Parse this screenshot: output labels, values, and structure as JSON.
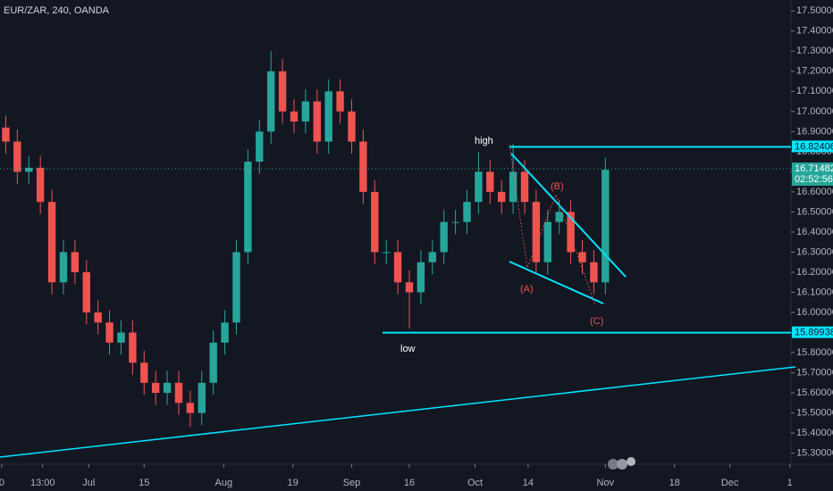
{
  "chart_data": {
    "type": "candlestick",
    "title": "EUR/ZAR, 240, OANDA",
    "up_color": "#26a69a",
    "down_color": "#ef5350",
    "grid": false,
    "xlim": [
      0,
      68.6
    ],
    "xticks": [
      {
        "value": 0.15,
        "label": "0"
      },
      {
        "value": 3.7,
        "label": "13:00"
      },
      {
        "value": 7.7,
        "label": "Jul"
      },
      {
        "value": 12.5,
        "label": "15"
      },
      {
        "value": 19.4,
        "label": "Aug"
      },
      {
        "value": 25.4,
        "label": "19"
      },
      {
        "value": 30.5,
        "label": "Sep"
      },
      {
        "value": 35.5,
        "label": "16"
      },
      {
        "value": 41.2,
        "label": "Oct"
      },
      {
        "value": 45.8,
        "label": "14"
      },
      {
        "value": 52.5,
        "label": "Nov"
      },
      {
        "value": 58.5,
        "label": "18"
      },
      {
        "value": 63.3,
        "label": "Dec"
      },
      {
        "value": 68.5,
        "label": "1"
      }
    ],
    "ylim": [
      15.245,
      17.5545
    ],
    "yticks": [
      {
        "value": 15.3,
        "label": "15.30000"
      },
      {
        "value": 15.4,
        "label": "15.40000"
      },
      {
        "value": 15.5,
        "label": "15.50000"
      },
      {
        "value": 15.6,
        "label": "15.60000"
      },
      {
        "value": 15.7,
        "label": "15.70000"
      },
      {
        "value": 15.8,
        "label": "15.80000"
      },
      {
        "value": 15.9,
        "label": "15.90000"
      },
      {
        "value": 16.0,
        "label": "16.00000"
      },
      {
        "value": 16.1,
        "label": "16.10000"
      },
      {
        "value": 16.2,
        "label": "16.20000"
      },
      {
        "value": 16.3,
        "label": "16.30000"
      },
      {
        "value": 16.4,
        "label": "16.40000"
      },
      {
        "value": 16.5,
        "label": "16.50000"
      },
      {
        "value": 16.6,
        "label": "16.60000"
      },
      {
        "value": 16.7,
        "label": "16.70000"
      },
      {
        "value": 16.8,
        "label": "16.80000"
      },
      {
        "value": 16.9,
        "label": "16.90000"
      },
      {
        "value": 17.0,
        "label": "17.00000"
      },
      {
        "value": 17.1,
        "label": "17.10000"
      },
      {
        "value": 17.2,
        "label": "17.20000"
      },
      {
        "value": 17.3,
        "label": "17.30000"
      },
      {
        "value": 17.4,
        "label": "17.40000"
      },
      {
        "value": 17.5,
        "label": "17.50000"
      }
    ],
    "open": [
      16.92,
      16.85,
      16.7,
      16.72,
      16.55,
      16.15,
      16.3,
      16.2,
      16.0,
      15.95,
      15.85,
      15.9,
      15.75,
      15.65,
      15.6,
      15.65,
      15.55,
      15.5,
      15.65,
      15.85,
      15.95,
      16.3,
      16.75,
      16.9,
      17.2,
      17.0,
      16.95,
      17.05,
      16.85,
      17.1,
      17.0,
      16.85,
      16.6,
      16.3,
      16.3,
      16.15,
      16.1,
      16.25,
      16.3,
      16.45,
      16.45,
      16.55,
      16.7,
      16.6,
      16.55,
      16.7,
      16.55,
      16.25,
      16.45,
      16.5,
      16.3,
      16.25,
      16.15
    ],
    "high": [
      16.98,
      16.91,
      16.78,
      16.78,
      16.61,
      16.36,
      16.36,
      16.26,
      16.06,
      16.01,
      15.96,
      15.96,
      15.81,
      15.71,
      15.71,
      15.71,
      15.61,
      15.71,
      15.91,
      16.01,
      16.36,
      16.81,
      16.96,
      17.3,
      17.26,
      17.06,
      17.11,
      17.11,
      17.16,
      17.16,
      17.06,
      16.91,
      16.66,
      16.36,
      16.36,
      16.21,
      16.31,
      16.36,
      16.51,
      16.51,
      16.61,
      16.8,
      16.76,
      16.66,
      16.84,
      16.76,
      16.61,
      16.51,
      16.56,
      16.56,
      16.36,
      16.31,
      16.77
    ],
    "low": [
      16.79,
      16.64,
      16.64,
      16.49,
      16.09,
      16.09,
      16.14,
      15.94,
      15.89,
      15.79,
      15.79,
      15.69,
      15.59,
      15.54,
      15.54,
      15.49,
      15.43,
      15.44,
      15.59,
      15.79,
      15.89,
      16.24,
      16.69,
      16.84,
      16.94,
      16.89,
      16.89,
      16.79,
      16.79,
      16.94,
      16.79,
      16.54,
      16.24,
      16.24,
      16.09,
      15.92,
      16.04,
      16.19,
      16.24,
      16.39,
      16.39,
      16.49,
      16.54,
      16.49,
      16.49,
      16.49,
      16.19,
      16.19,
      16.39,
      16.24,
      16.19,
      16.09,
      16.09
    ],
    "close": [
      16.85,
      16.7,
      16.72,
      16.55,
      16.15,
      16.3,
      16.2,
      16.0,
      15.95,
      15.85,
      15.9,
      15.75,
      15.65,
      15.6,
      15.65,
      15.55,
      15.5,
      15.65,
      15.85,
      15.95,
      16.3,
      16.75,
      16.9,
      17.2,
      17.0,
      16.95,
      17.05,
      16.85,
      17.1,
      17.0,
      16.85,
      16.6,
      16.3,
      16.3,
      16.15,
      16.1,
      16.25,
      16.3,
      16.45,
      16.45,
      16.55,
      16.7,
      16.6,
      16.55,
      16.7,
      16.55,
      16.25,
      16.45,
      16.5,
      16.3,
      16.25,
      16.15,
      16.71
    ],
    "price_lines": [
      {
        "value": 16.82406,
        "color": "#00e5ff"
      },
      {
        "value": 16.71482,
        "color": "#26a69a",
        "dotted": true
      },
      {
        "value": 15.89938,
        "color": "#00e5ff"
      }
    ],
    "countdown": "02:52:56",
    "annotations": [
      "high",
      "low",
      "(A)",
      "(B)",
      "(C)"
    ]
  }
}
